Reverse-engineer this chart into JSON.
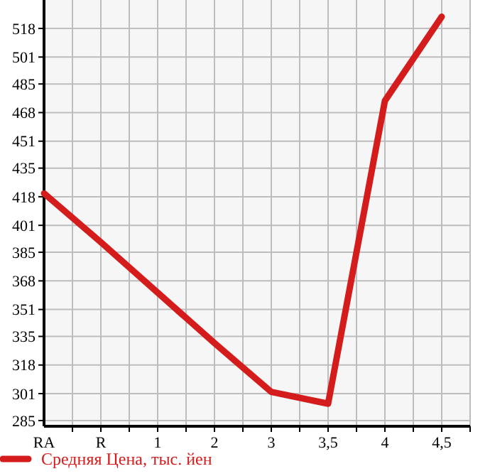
{
  "chart_data": {
    "type": "line",
    "categories": [
      "RA",
      "R",
      "1",
      "2",
      "3",
      "3,5",
      "4",
      "4,5"
    ],
    "series": [
      {
        "name": "Средняя Цена, тыс. йен",
        "color": "#d41c1c",
        "values": [
          420,
          391,
          361,
          331,
          302,
          295,
          475,
          525
        ]
      }
    ],
    "ylim": [
      281.6,
      534.9
    ],
    "yticks": [
      285,
      301,
      318,
      335,
      351,
      368,
      385,
      401,
      418,
      435,
      451,
      468,
      485,
      501,
      518
    ],
    "grid": true,
    "legend": "bottom",
    "marker": "none",
    "line_style": "solid"
  }
}
